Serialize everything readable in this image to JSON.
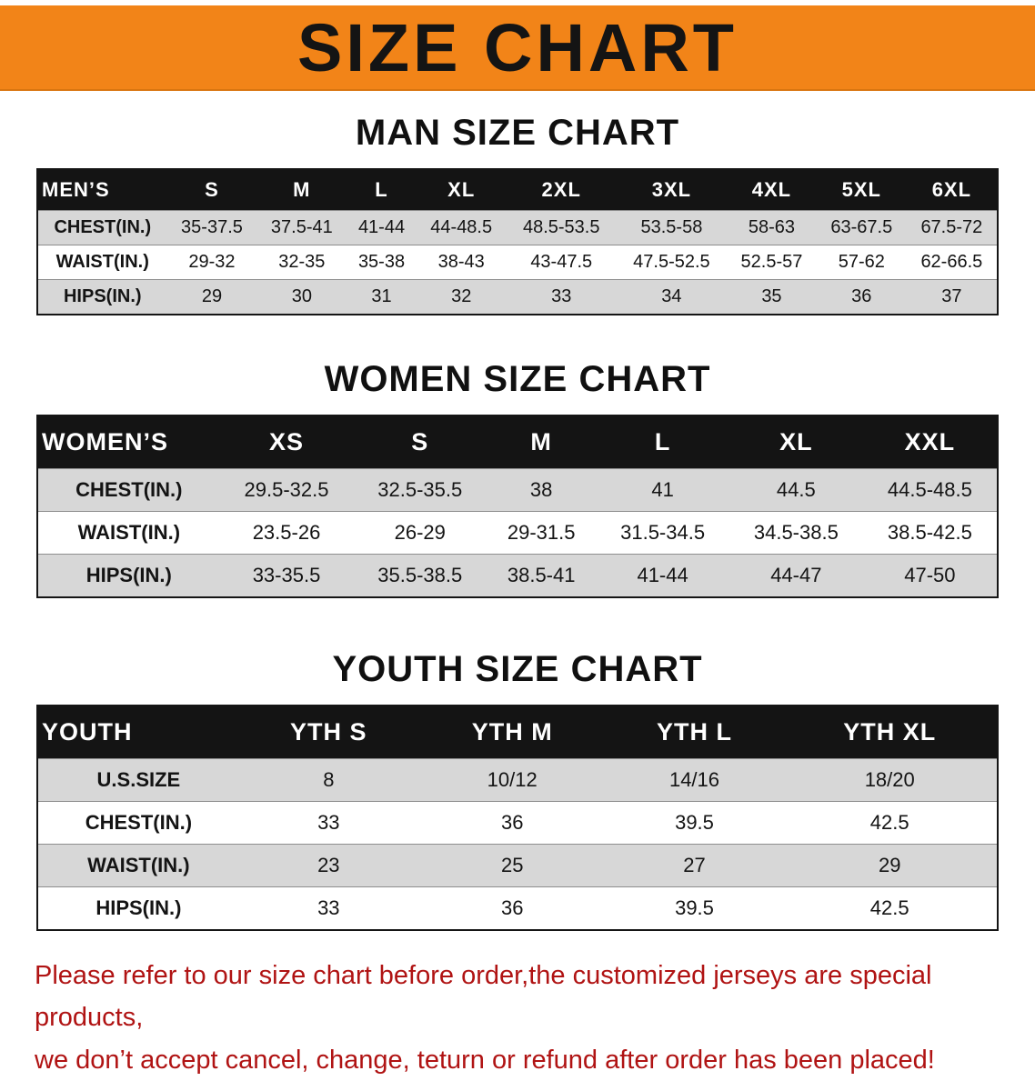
{
  "banner": {
    "title": "SIZE CHART"
  },
  "men": {
    "heading": "MAN SIZE CHART",
    "table": {
      "header": [
        "MEN’S",
        "S",
        "M",
        "L",
        "XL",
        "2XL",
        "3XL",
        "4XL",
        "5XL",
        "6XL"
      ],
      "rows": [
        [
          "CHEST(IN.)",
          "35-37.5",
          "37.5-41",
          "41-44",
          "44-48.5",
          "48.5-53.5",
          "53.5-58",
          "58-63",
          "63-67.5",
          "67.5-72"
        ],
        [
          "WAIST(IN.)",
          "29-32",
          "32-35",
          "35-38",
          "38-43",
          "43-47.5",
          "47.5-52.5",
          "52.5-57",
          "57-62",
          "62-66.5"
        ],
        [
          "HIPS(IN.)",
          "29",
          "30",
          "31",
          "32",
          "33",
          "34",
          "35",
          "36",
          "37"
        ]
      ]
    }
  },
  "women": {
    "heading": "WOMEN SIZE CHART",
    "table": {
      "header": [
        "WOMEN’S",
        "XS",
        "S",
        "M",
        "L",
        "XL",
        "XXL"
      ],
      "rows": [
        [
          "CHEST(IN.)",
          "29.5-32.5",
          "32.5-35.5",
          "38",
          "41",
          "44.5",
          "44.5-48.5"
        ],
        [
          "WAIST(IN.)",
          "23.5-26",
          "26-29",
          "29-31.5",
          "31.5-34.5",
          "34.5-38.5",
          "38.5-42.5"
        ],
        [
          "HIPS(IN.)",
          "33-35.5",
          "35.5-38.5",
          "38.5-41",
          "41-44",
          "44-47",
          "47-50"
        ]
      ]
    }
  },
  "youth": {
    "heading": "YOUTH SIZE CHART",
    "table": {
      "header": [
        "YOUTH",
        "YTH S",
        "YTH M",
        "YTH L",
        "YTH XL"
      ],
      "rows": [
        [
          "U.S.SIZE",
          "8",
          "10/12",
          "14/16",
          "18/20"
        ],
        [
          "CHEST(IN.)",
          "33",
          "36",
          "39.5",
          "42.5"
        ],
        [
          "WAIST(IN.)",
          "23",
          "25",
          "27",
          "29"
        ],
        [
          "HIPS(IN.)",
          "33",
          "36",
          "39.5",
          "42.5"
        ]
      ]
    }
  },
  "footer": {
    "line1": "Please refer to our size chart before order,the customized jerseys are special products,",
    "line2": "we don’t accept cancel, change, teturn or refund after order has been placed!"
  },
  "colors": {
    "banner_orange": "#f28418",
    "table_header_black": "#141414",
    "row_gray": "#d7d7d7",
    "disclaimer_red": "#b01313"
  }
}
